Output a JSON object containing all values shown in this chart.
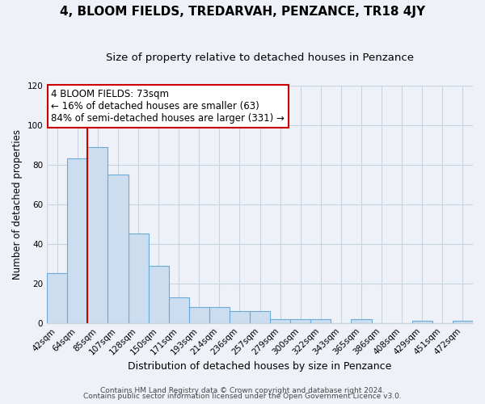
{
  "title": "4, BLOOM FIELDS, TREDARVAH, PENZANCE, TR18 4JY",
  "subtitle": "Size of property relative to detached houses in Penzance",
  "xlabel": "Distribution of detached houses by size in Penzance",
  "ylabel": "Number of detached properties",
  "bar_values": [
    25,
    83,
    89,
    75,
    45,
    29,
    13,
    8,
    8,
    6,
    6,
    2,
    2,
    2,
    0,
    2,
    0,
    0,
    1,
    0,
    1
  ],
  "bar_labels": [
    "42sqm",
    "64sqm",
    "85sqm",
    "107sqm",
    "128sqm",
    "150sqm",
    "171sqm",
    "193sqm",
    "214sqm",
    "236sqm",
    "257sqm",
    "279sqm",
    "300sqm",
    "322sqm",
    "343sqm",
    "365sqm",
    "386sqm",
    "408sqm",
    "429sqm",
    "451sqm",
    "472sqm"
  ],
  "ylim": [
    0,
    120
  ],
  "yticks": [
    0,
    20,
    40,
    60,
    80,
    100,
    120
  ],
  "bar_color": "#ccddf0",
  "bar_edge_color": "#6aaad4",
  "grid_color": "#c8d4e0",
  "vline_x": 2.0,
  "vline_color": "#cc0000",
  "annotation_text_line1": "4 BLOOM FIELDS: 73sqm",
  "annotation_text_line2": "← 16% of detached houses are smaller (63)",
  "annotation_text_line3": "84% of semi-detached houses are larger (331) →",
  "annotation_box_edge_color": "#cc0000",
  "footer_line1": "Contains HM Land Registry data © Crown copyright and database right 2024.",
  "footer_line2": "Contains public sector information licensed under the Open Government Licence v3.0.",
  "bg_color": "#eef2f8",
  "title_fontsize": 11,
  "subtitle_fontsize": 9.5,
  "tick_fontsize": 7.5,
  "xlabel_fontsize": 9,
  "ylabel_fontsize": 8.5,
  "annot_fontsize": 8.5,
  "footer_fontsize": 6.5
}
